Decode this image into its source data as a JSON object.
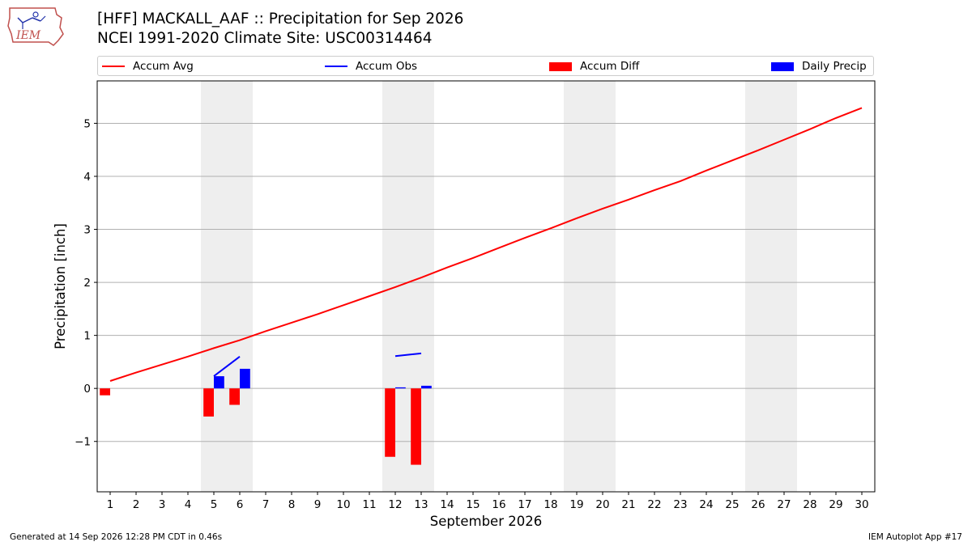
{
  "header": {
    "title": "[HFF] MACKALL_AAF :: Precipitation for Sep 2026",
    "subtitle": "NCEI 1991-2020 Climate Site: USC00314464",
    "logo_text": "IEM"
  },
  "footer": {
    "generated": "Generated at 14 Sep 2026 12:28 PM CDT in 0.46s",
    "app": "IEM Autoplot App #17"
  },
  "colors": {
    "avg": "#ff0000",
    "obs": "#0000ff",
    "diff": "#ff0000",
    "daily": "#0000ff",
    "weekend": "#eeeeee",
    "grid": "#b0b0b0"
  },
  "chart_data": {
    "type": "bar",
    "xlabel": "September 2026",
    "ylabel": "Precipitation [inch]",
    "xlim": [
      0.5,
      30.5
    ],
    "ylim": [
      -1.95,
      5.8
    ],
    "yticks": [
      -1,
      0,
      1,
      2,
      3,
      4,
      5
    ],
    "ytick_labels": [
      "−1",
      "0",
      "1",
      "2",
      "3",
      "4",
      "5"
    ],
    "grid": "horizontal",
    "legend_position": "top",
    "days": [
      1,
      2,
      3,
      4,
      5,
      6,
      7,
      8,
      9,
      10,
      11,
      12,
      13,
      14,
      15,
      16,
      17,
      18,
      19,
      20,
      21,
      22,
      23,
      24,
      25,
      26,
      27,
      28,
      29,
      30
    ],
    "weekend_spans": [
      [
        5,
        6
      ],
      [
        12,
        13
      ],
      [
        19,
        20
      ],
      [
        26,
        27
      ]
    ],
    "series": [
      {
        "name": "Accum Avg",
        "kind": "line",
        "x": [
          1,
          2,
          3,
          4,
          5,
          6,
          7,
          8,
          9,
          10,
          11,
          12,
          13,
          14,
          15,
          16,
          17,
          18,
          19,
          20,
          21,
          22,
          23,
          24,
          25,
          26,
          27,
          28,
          29,
          30
        ],
        "values": [
          0.14,
          0.3,
          0.45,
          0.6,
          0.76,
          0.91,
          1.08,
          1.24,
          1.4,
          1.57,
          1.74,
          1.91,
          2.09,
          2.28,
          2.46,
          2.65,
          2.84,
          3.02,
          3.21,
          3.39,
          3.56,
          3.74,
          3.91,
          4.11,
          4.3,
          4.49,
          4.69,
          4.89,
          5.1,
          5.29
        ]
      },
      {
        "name": "Accum Obs",
        "kind": "line",
        "segments": [
          {
            "x": [
              5,
              6
            ],
            "values": [
              0.23,
              0.6
            ]
          },
          {
            "x": [
              12,
              13
            ],
            "values": [
              0.61,
              0.66
            ]
          }
        ]
      },
      {
        "name": "Accum Diff",
        "kind": "bar",
        "offset": -0.2,
        "x": [
          1,
          5,
          6,
          12,
          13
        ],
        "values": [
          -0.13,
          -0.53,
          -0.31,
          -1.29,
          -1.44
        ]
      },
      {
        "name": "Daily Precip",
        "kind": "bar",
        "offset": 0.2,
        "x": [
          5,
          6,
          12,
          13
        ],
        "values": [
          0.23,
          0.37,
          0.02,
          0.05
        ]
      }
    ]
  }
}
